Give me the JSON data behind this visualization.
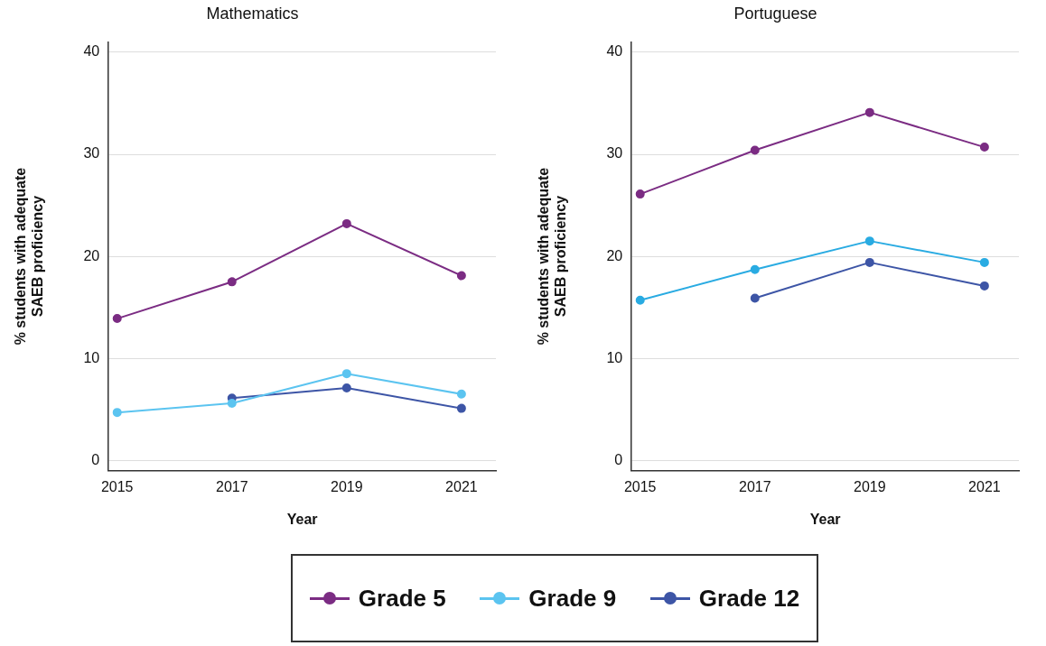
{
  "chart_data": [
    {
      "type": "line",
      "title": "Mathematics",
      "xlabel": "Year",
      "ylabel": "% students with adequate SAEB proficiency",
      "x": [
        2015,
        2017,
        2019,
        2021
      ],
      "xlim": [
        2014.85,
        2021.6
      ],
      "xticks": [
        2015,
        2017,
        2019,
        2021
      ],
      "ylim": [
        -1,
        41
      ],
      "yticks": [
        0,
        10,
        20,
        30,
        40
      ],
      "grid": "y",
      "marker": "circle",
      "legend": "bottom",
      "series": [
        {
          "name": "Grade 5",
          "color": "#7b2c83",
          "values": [
            13.9,
            17.5,
            23.2,
            18.1
          ]
        },
        {
          "name": "Grade 9",
          "color": "#5bc4f0",
          "values": [
            4.7,
            5.6,
            8.5,
            6.5
          ]
        },
        {
          "name": "Grade 12",
          "color": "#3d55a6",
          "values": [
            null,
            6.1,
            7.1,
            5.1
          ]
        }
      ]
    },
    {
      "type": "line",
      "title": "Portuguese",
      "xlabel": "Year",
      "ylabel": "% students with adequate SAEB proficiency",
      "x": [
        2015,
        2017,
        2019,
        2021
      ],
      "xlim": [
        2014.85,
        2021.6
      ],
      "xticks": [
        2015,
        2017,
        2019,
        2021
      ],
      "ylim": [
        -1,
        41
      ],
      "yticks": [
        0,
        10,
        20,
        30,
        40
      ],
      "grid": "y",
      "marker": "circle",
      "series": [
        {
          "color": "#7b2c83",
          "values": [
            26.1,
            30.4,
            34.1,
            30.7
          ]
        },
        {
          "color": "#29abe2",
          "values": [
            15.7,
            18.7,
            21.5,
            19.4
          ]
        },
        {
          "color": "#3d55a6",
          "values": [
            null,
            15.9,
            19.4,
            17.1
          ]
        }
      ]
    }
  ]
}
